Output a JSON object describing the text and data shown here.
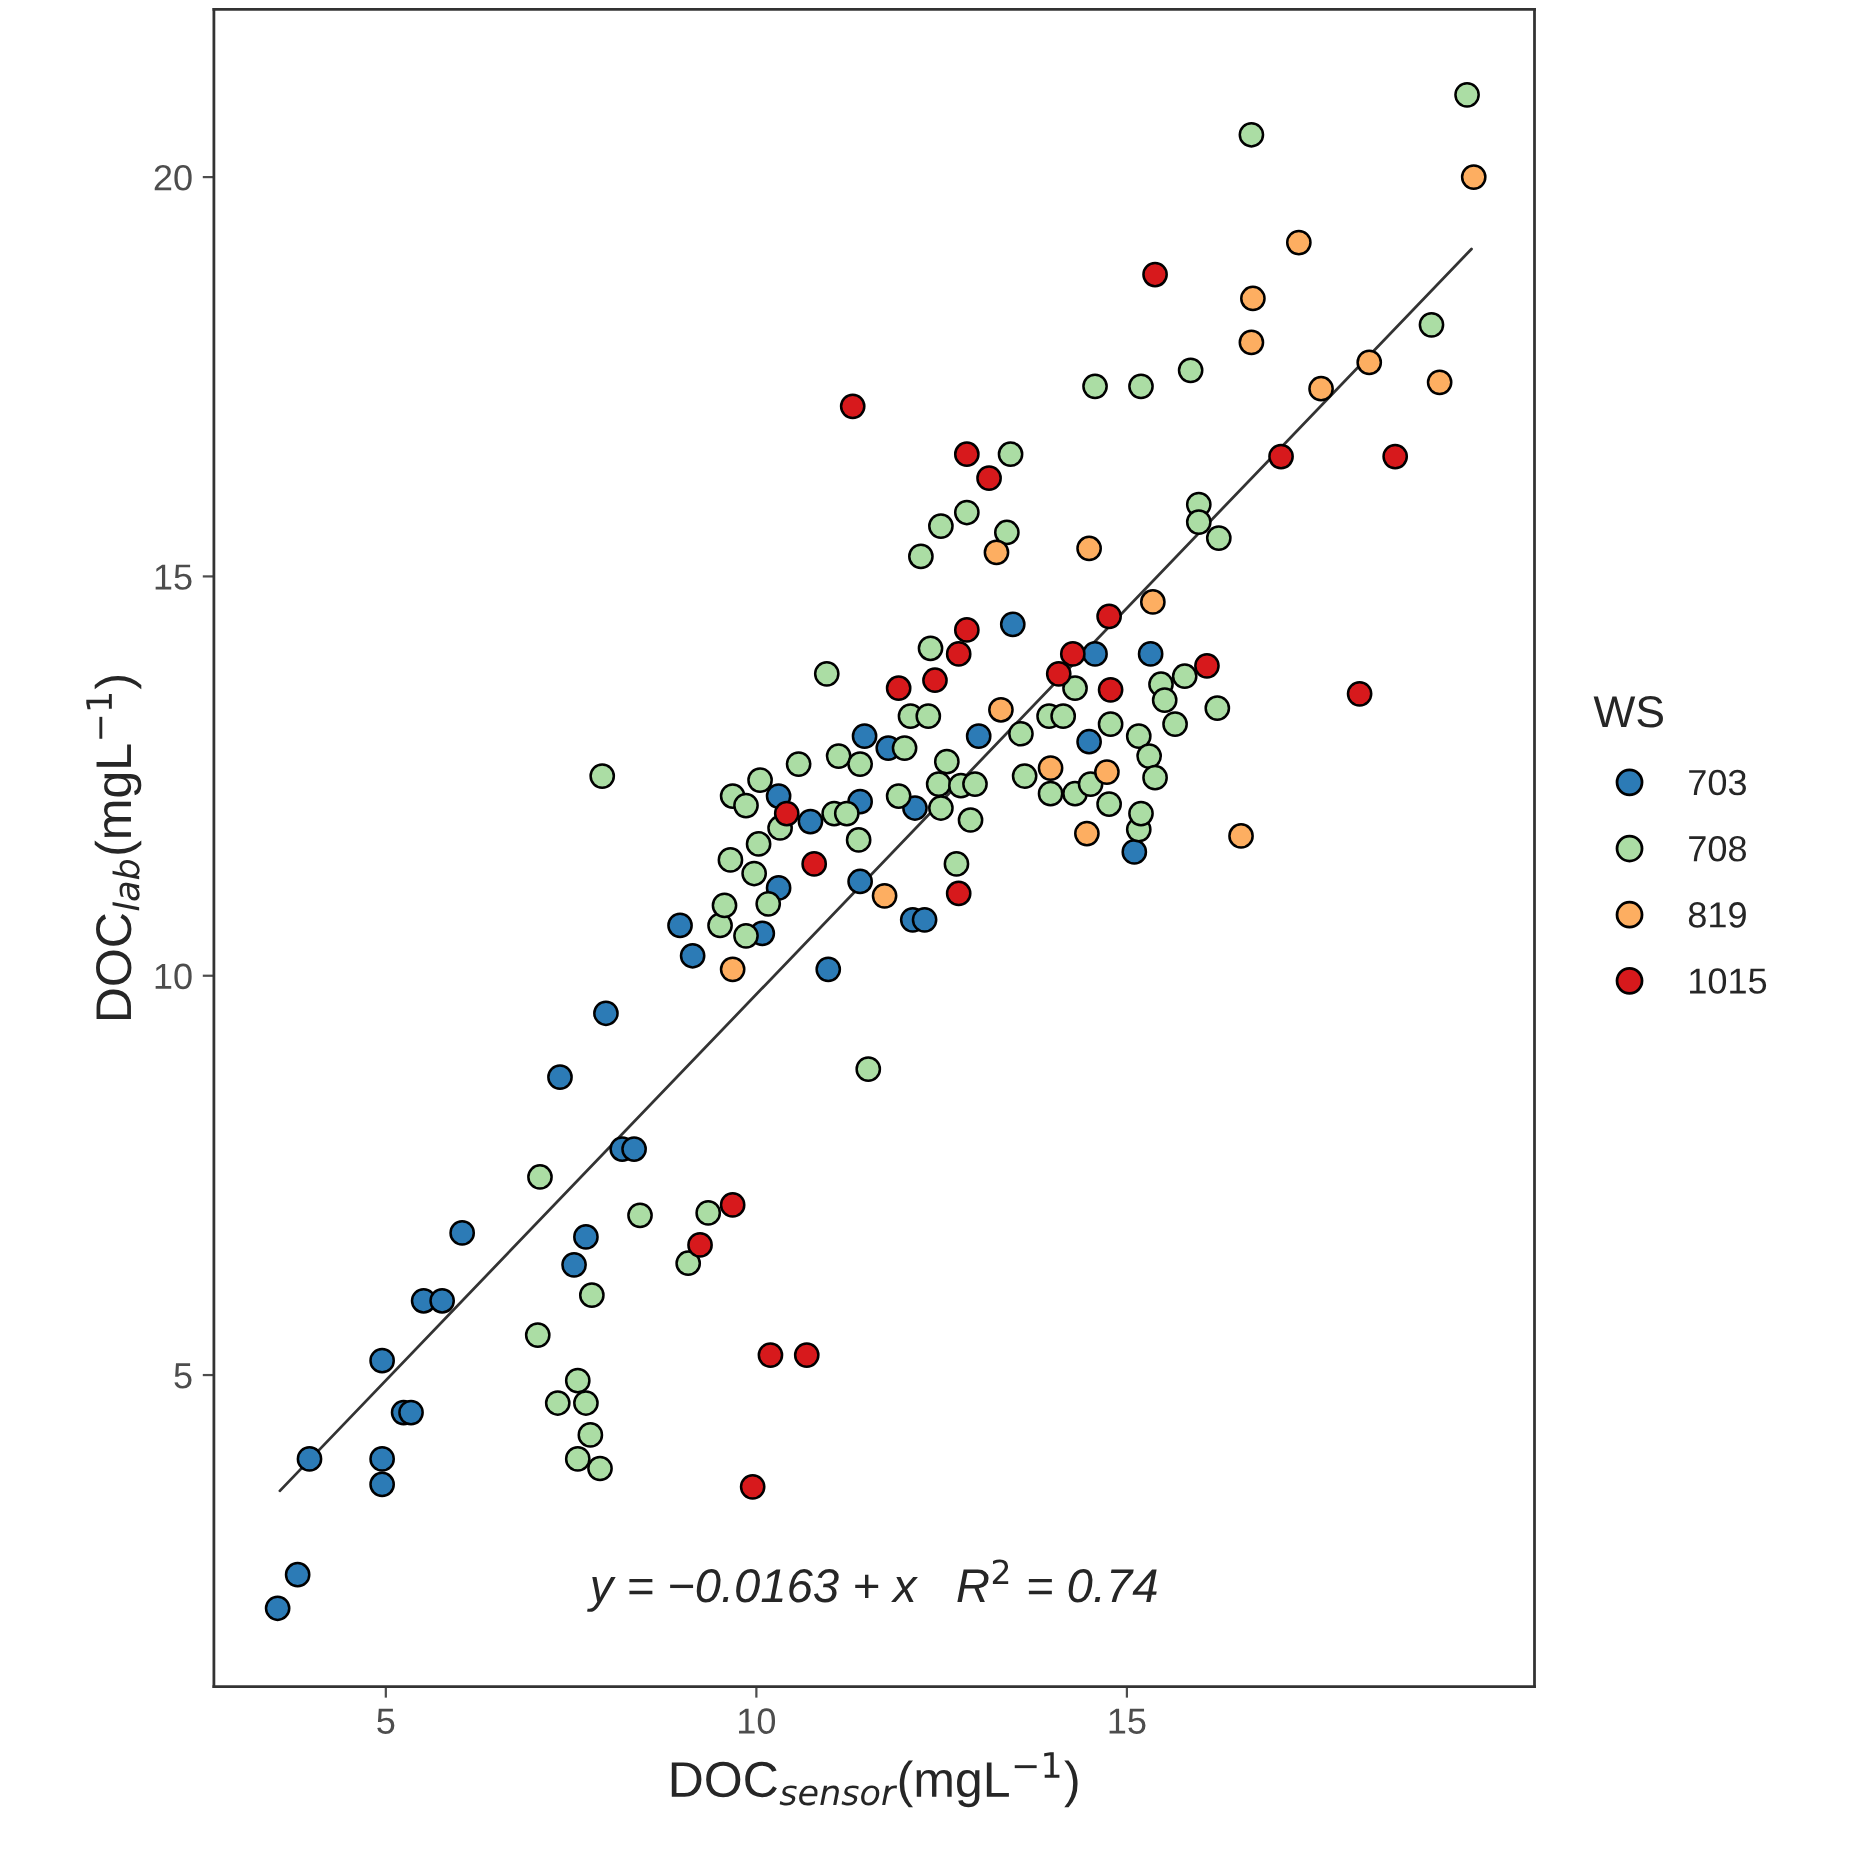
{
  "chart_data": {
    "type": "scatter",
    "xlabel": "DOC$_{sensor}$(mgL$^{−1}$)",
    "ylabel": "DOC$_{lab}$(mgL$^{−1}$)",
    "legend_title": "WS",
    "legend": "right",
    "grid": false,
    "marker": "circle",
    "xlim": [
      2.68,
      20.5
    ],
    "ylim": [
      1.1,
      22.1
    ],
    "xticks": [
      5,
      10,
      15
    ],
    "yticks": [
      5,
      10,
      15,
      20
    ],
    "annotations": [
      "y = −0.0163 + x   R$^{2}$ = 0.74"
    ],
    "series": [
      {
        "name": "703",
        "color": "#2c7bb6",
        "x": [
          3.54,
          3.81,
          3.97,
          4.95,
          4.95,
          4.95,
          5.24,
          5.34,
          5.51,
          5.76,
          6.03,
          7.35,
          7.54,
          7.7,
          7.97,
          8.19,
          8.35,
          8.97,
          9.14,
          10.08,
          10.3,
          10.3,
          10.73,
          10.97,
          11.4,
          11.4,
          11.46,
          11.78,
          12.11,
          12.14,
          12.27,
          13.0,
          13.46,
          14.49,
          14.57,
          15.1,
          15.32
        ],
        "values": [
          2.08,
          2.5,
          3.95,
          5.18,
          3.95,
          3.63,
          4.53,
          4.53,
          5.93,
          5.93,
          6.78,
          8.73,
          6.38,
          6.73,
          9.53,
          7.83,
          7.83,
          10.63,
          10.25,
          10.53,
          11.1,
          12.25,
          11.93,
          10.08,
          11.18,
          12.18,
          13.0,
          12.85,
          10.7,
          12.1,
          10.7,
          13.0,
          14.4,
          12.93,
          14.03,
          11.55,
          14.03
        ]
      },
      {
        "name": "708",
        "color": "#abdda4",
        "x": [
          7.05,
          7.08,
          7.32,
          7.59,
          7.59,
          7.7,
          7.76,
          7.78,
          7.89,
          7.92,
          8.43,
          9.08,
          9.35,
          9.51,
          9.57,
          9.65,
          9.68,
          9.86,
          9.86,
          9.97,
          10.03,
          10.05,
          10.16,
          10.32,
          10.57,
          10.95,
          11.05,
          11.11,
          11.22,
          11.38,
          11.4,
          11.51,
          11.92,
          12.0,
          12.08,
          12.22,
          12.32,
          12.35,
          12.46,
          12.49,
          12.49,
          12.57,
          12.7,
          12.76,
          12.84,
          12.89,
          12.95,
          13.38,
          13.43,
          13.57,
          13.62,
          13.95,
          13.97,
          14.14,
          14.3,
          14.3,
          14.51,
          14.57,
          14.76,
          14.78,
          15.16,
          15.16,
          15.19,
          15.19,
          15.3,
          15.38,
          15.46,
          15.51,
          15.65,
          15.78,
          15.86,
          15.97,
          15.97,
          16.22,
          16.24,
          16.68,
          19.11,
          19.59
        ],
        "values": [
          5.5,
          7.48,
          4.65,
          4.93,
          3.95,
          4.65,
          4.25,
          6.0,
          3.83,
          12.5,
          7.0,
          6.4,
          7.03,
          10.63,
          10.88,
          11.45,
          12.25,
          12.13,
          10.5,
          11.28,
          11.65,
          12.45,
          10.9,
          11.85,
          12.65,
          13.78,
          12.03,
          12.75,
          12.03,
          11.7,
          12.65,
          8.83,
          12.25,
          12.85,
          13.25,
          15.25,
          13.25,
          14.1,
          12.4,
          15.63,
          12.1,
          12.68,
          11.4,
          12.38,
          15.8,
          11.95,
          12.4,
          15.55,
          16.53,
          13.03,
          12.5,
          13.25,
          12.28,
          13.25,
          13.6,
          12.28,
          12.4,
          17.38,
          12.15,
          13.15,
          13.0,
          11.83,
          17.38,
          12.03,
          12.75,
          12.48,
          13.65,
          13.45,
          13.15,
          13.75,
          17.58,
          15.9,
          15.68,
          13.35,
          15.48,
          20.53,
          18.15,
          21.03
        ]
      },
      {
        "name": "819",
        "color": "#fdae61",
        "x": [
          9.68,
          11.73,
          13.24,
          13.3,
          13.97,
          14.46,
          14.49,
          14.73,
          15.35,
          16.54,
          16.68,
          16.7,
          17.32,
          17.62,
          18.27,
          19.22,
          19.68
        ],
        "values": [
          10.08,
          11.0,
          15.3,
          13.33,
          12.6,
          11.78,
          15.35,
          12.55,
          14.68,
          11.75,
          17.93,
          18.48,
          19.18,
          17.35,
          17.68,
          17.43,
          20.0
        ]
      },
      {
        "name": "1015",
        "color": "#d7191c",
        "x": [
          9.24,
          9.68,
          9.95,
          10.19,
          10.41,
          10.68,
          10.78,
          11.3,
          11.92,
          12.41,
          12.73,
          12.73,
          12.84,
          12.84,
          13.14,
          14.08,
          14.27,
          14.76,
          14.78,
          15.38,
          16.08,
          17.08,
          18.14,
          18.62
        ],
        "values": [
          6.63,
          7.13,
          3.6,
          5.25,
          12.03,
          5.25,
          11.4,
          17.13,
          13.6,
          13.7,
          14.03,
          11.03,
          14.33,
          16.53,
          16.23,
          13.78,
          14.03,
          14.5,
          13.58,
          18.78,
          13.88,
          16.5,
          13.53,
          16.5
        ]
      },
      {
        "type": "line",
        "marker": "none",
        "color": "#333333",
        "x": [
          3.57,
          19.65
        ],
        "values": [
          3.55,
          19.1
        ]
      }
    ]
  }
}
